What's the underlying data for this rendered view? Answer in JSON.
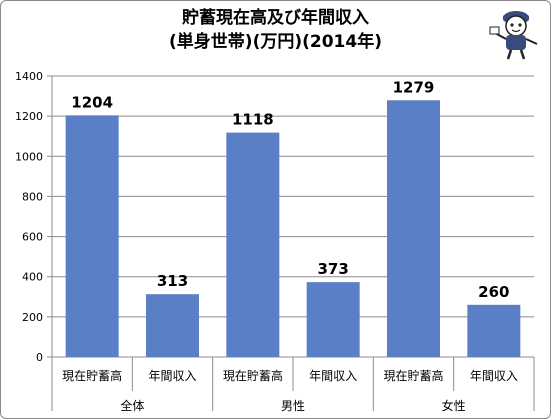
{
  "chart_data": {
    "type": "bar",
    "title": "貯蓄現在高及び年間収入",
    "subtitle": "(単身世帯)(万円)(2014年)",
    "groups": [
      "全体",
      "男性",
      "女性"
    ],
    "categories": [
      "現在貯蓄高",
      "年間収入",
      "現在貯蓄高",
      "年間収入",
      "現在貯蓄高",
      "年間収入"
    ],
    "values": [
      1204,
      313,
      1118,
      373,
      1279,
      260
    ],
    "ylim": [
      0,
      1400
    ],
    "yticks": [
      0,
      200,
      400,
      600,
      800,
      1000,
      1200,
      1400
    ],
    "grid": true,
    "legend": "none",
    "bar_color": "#5b7fc7"
  }
}
